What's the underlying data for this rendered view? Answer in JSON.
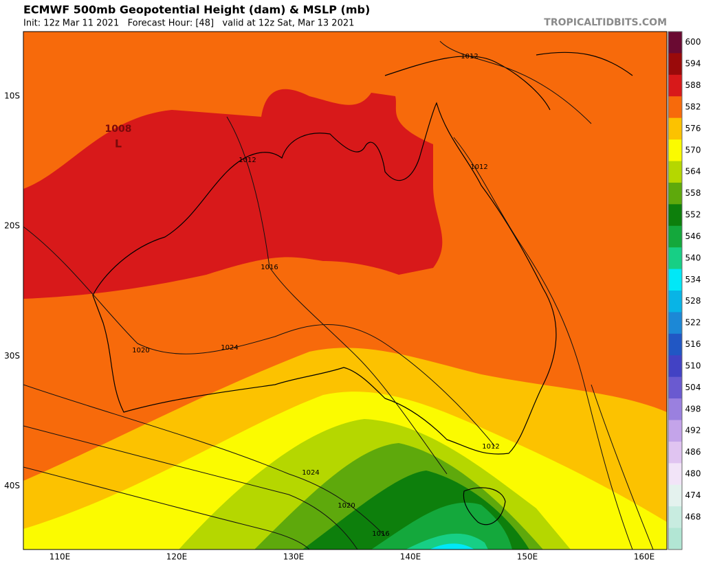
{
  "header": {
    "title": "ECMWF 500mb Geopotential Height (dam) & MSLP (mb)",
    "subtitle": "Init: 12z Mar 11 2021   Forecast Hour: [48]   valid at 12z Sat, Mar 13 2021",
    "brand": "TROPICALTIDBITS.COM"
  },
  "latitude_labels": [
    "10S",
    "20S",
    "30S",
    "40S"
  ],
  "longitude_labels": [
    "110E",
    "120E",
    "130E",
    "140E",
    "150E",
    "160E"
  ],
  "low": {
    "pressure": "1008",
    "symbol": "L"
  },
  "isobar_labels": [
    "1012",
    "1012",
    "1012",
    "1016",
    "1020",
    "1024",
    "1024",
    "1020",
    "1016",
    "1012"
  ],
  "colorbar": {
    "labels": [
      "600",
      "594",
      "588",
      "582",
      "576",
      "570",
      "564",
      "558",
      "552",
      "546",
      "540",
      "534",
      "528",
      "522",
      "516",
      "510",
      "504",
      "498",
      "492",
      "486",
      "480",
      "474",
      "468"
    ],
    "colors": [
      "#6a0a32",
      "#9a0a0a",
      "#d8191a",
      "#f76a0b",
      "#fcc200",
      "#fbfb00",
      "#b5d700",
      "#5ea90c",
      "#0d7f0c",
      "#14a83c",
      "#17cf85",
      "#00e8f7",
      "#08b4e6",
      "#1c88d6",
      "#2157c4",
      "#4242c4",
      "#6a5ad0",
      "#9a80df",
      "#c4a4ea",
      "#e0c4f1",
      "#f2e4f8",
      "#e4f2ee",
      "#c8ece0",
      "#b2e6d4"
    ]
  }
}
